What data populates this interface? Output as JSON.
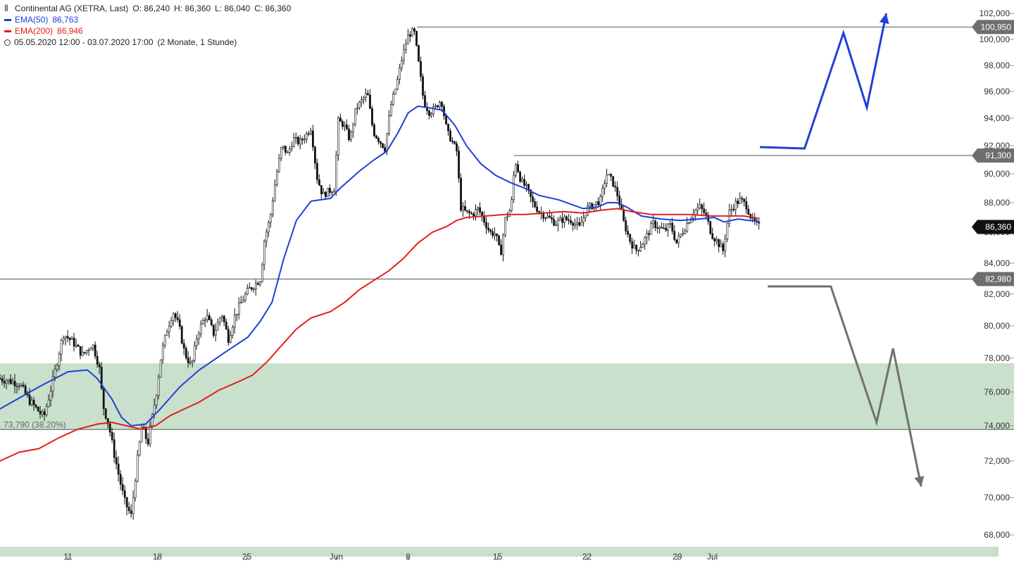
{
  "legend": {
    "title": "Continental AG (XETRA, Last)",
    "ohlc": {
      "o": "O: 86,240",
      "h": "H: 86,360",
      "l": "L: 86,040",
      "c": "C: 86,360"
    },
    "ema50": {
      "label": "EMA(50)",
      "value": "86,763",
      "color": "#1f3fd6"
    },
    "ema200": {
      "label": "EMA(200)",
      "value": "86,946",
      "color": "#e0201b"
    },
    "range": "05.05.2020 12:00 - 03.07.2020 17:00",
    "period": "(2 Monate, 1 Stunde)"
  },
  "chart_data": {
    "type": "candlestick",
    "ylim": [
      67000,
      103000
    ],
    "yticks": [
      "68,000",
      "70,000",
      "72,000",
      "74,000",
      "76,000",
      "78,000",
      "80,000",
      "82,000",
      "84,000",
      "86,000",
      "88,000",
      "90,000",
      "92,000",
      "94,000",
      "96,000",
      "98,000",
      "100,000",
      "102,000"
    ],
    "ytick_values": [
      68000,
      70000,
      72000,
      74000,
      76000,
      78000,
      80000,
      82000,
      84000,
      86000,
      88000,
      90000,
      92000,
      94000,
      96000,
      98000,
      100000,
      102000
    ],
    "xticks": [
      {
        "label": "11",
        "t": 0.07
      },
      {
        "label": "18",
        "t": 0.162
      },
      {
        "label": "25",
        "t": 0.254
      },
      {
        "label": "Jun",
        "t": 0.346
      },
      {
        "label": "8",
        "t": 0.42
      },
      {
        "label": "15",
        "t": 0.512
      },
      {
        "label": "22",
        "t": 0.604
      },
      {
        "label": "29",
        "t": 0.697
      },
      {
        "label": "Jul",
        "t": 0.733
      }
    ],
    "price_anchors": [
      [
        0.0,
        76800
      ],
      [
        0.02,
        76500
      ],
      [
        0.03,
        75500
      ],
      [
        0.045,
        74500
      ],
      [
        0.055,
        76800
      ],
      [
        0.065,
        79500
      ],
      [
        0.075,
        79000
      ],
      [
        0.085,
        78200
      ],
      [
        0.095,
        78900
      ],
      [
        0.102,
        77500
      ],
      [
        0.106,
        75200
      ],
      [
        0.112,
        74000
      ],
      [
        0.117,
        72500
      ],
      [
        0.123,
        71000
      ],
      [
        0.128,
        69800
      ],
      [
        0.135,
        69000
      ],
      [
        0.14,
        71500
      ],
      [
        0.146,
        74000
      ],
      [
        0.152,
        73000
      ],
      [
        0.156,
        74300
      ],
      [
        0.161,
        76000
      ],
      [
        0.166,
        78300
      ],
      [
        0.172,
        79800
      ],
      [
        0.178,
        80900
      ],
      [
        0.184,
        80000
      ],
      [
        0.19,
        78300
      ],
      [
        0.197,
        77500
      ],
      [
        0.203,
        79500
      ],
      [
        0.212,
        80700
      ],
      [
        0.22,
        79500
      ],
      [
        0.228,
        80800
      ],
      [
        0.235,
        79200
      ],
      [
        0.242,
        80700
      ],
      [
        0.25,
        81700
      ],
      [
        0.256,
        82300
      ],
      [
        0.262,
        82600
      ],
      [
        0.268,
        83000
      ],
      [
        0.272,
        85500
      ],
      [
        0.278,
        87000
      ],
      [
        0.284,
        89800
      ],
      [
        0.29,
        92000
      ],
      [
        0.296,
        91400
      ],
      [
        0.302,
        92500
      ],
      [
        0.308,
        92200
      ],
      [
        0.314,
        92700
      ],
      [
        0.32,
        93300
      ],
      [
        0.326,
        89800
      ],
      [
        0.332,
        88500
      ],
      [
        0.338,
        88800
      ],
      [
        0.344,
        89000
      ],
      [
        0.348,
        93800
      ],
      [
        0.354,
        93500
      ],
      [
        0.36,
        92400
      ],
      [
        0.366,
        94700
      ],
      [
        0.372,
        95300
      ],
      [
        0.378,
        95900
      ],
      [
        0.384,
        93000
      ],
      [
        0.39,
        92400
      ],
      [
        0.396,
        91800
      ],
      [
        0.402,
        94900
      ],
      [
        0.408,
        96500
      ],
      [
        0.414,
        98700
      ],
      [
        0.42,
        100300
      ],
      [
        0.426,
        100700
      ],
      [
        0.432,
        97500
      ],
      [
        0.436,
        95200
      ],
      [
        0.442,
        94400
      ],
      [
        0.448,
        94800
      ],
      [
        0.454,
        95400
      ],
      [
        0.46,
        93000
      ],
      [
        0.466,
        92200
      ],
      [
        0.47,
        91600
      ],
      [
        0.474,
        87700
      ],
      [
        0.48,
        87300
      ],
      [
        0.486,
        87200
      ],
      [
        0.492,
        87600
      ],
      [
        0.498,
        86800
      ],
      [
        0.504,
        86000
      ],
      [
        0.51,
        85900
      ],
      [
        0.515,
        84500
      ],
      [
        0.52,
        86900
      ],
      [
        0.526,
        87700
      ],
      [
        0.53,
        91000
      ],
      [
        0.536,
        89500
      ],
      [
        0.542,
        89000
      ],
      [
        0.548,
        88000
      ],
      [
        0.556,
        87300
      ],
      [
        0.564,
        87000
      ],
      [
        0.572,
        86600
      ],
      [
        0.58,
        86900
      ],
      [
        0.588,
        86800
      ],
      [
        0.596,
        86300
      ],
      [
        0.604,
        87600
      ],
      [
        0.612,
        87900
      ],
      [
        0.618,
        88200
      ],
      [
        0.624,
        90000
      ],
      [
        0.63,
        89500
      ],
      [
        0.636,
        88400
      ],
      [
        0.642,
        86600
      ],
      [
        0.648,
        85500
      ],
      [
        0.654,
        84800
      ],
      [
        0.66,
        85200
      ],
      [
        0.666,
        85800
      ],
      [
        0.672,
        86600
      ],
      [
        0.678,
        86300
      ],
      [
        0.684,
        86100
      ],
      [
        0.69,
        86500
      ],
      [
        0.696,
        85300
      ],
      [
        0.702,
        86000
      ],
      [
        0.708,
        86700
      ],
      [
        0.714,
        87400
      ],
      [
        0.72,
        87700
      ],
      [
        0.726,
        87200
      ],
      [
        0.732,
        85900
      ],
      [
        0.738,
        85400
      ],
      [
        0.744,
        84800
      ],
      [
        0.75,
        87300
      ],
      [
        0.756,
        87900
      ],
      [
        0.762,
        88200
      ],
      [
        0.768,
        87800
      ],
      [
        0.774,
        86800
      ],
      [
        0.78,
        86400
      ]
    ],
    "series": [
      {
        "name": "EMA(50)",
        "color": "#1f3fd6",
        "points": [
          [
            0.0,
            75000
          ],
          [
            0.04,
            76300
          ],
          [
            0.07,
            77200
          ],
          [
            0.09,
            77300
          ],
          [
            0.1,
            76800
          ],
          [
            0.115,
            75600
          ],
          [
            0.125,
            74500
          ],
          [
            0.135,
            74000
          ],
          [
            0.15,
            74100
          ],
          [
            0.165,
            75000
          ],
          [
            0.185,
            76300
          ],
          [
            0.205,
            77300
          ],
          [
            0.23,
            78300
          ],
          [
            0.255,
            79300
          ],
          [
            0.268,
            80300
          ],
          [
            0.28,
            81500
          ],
          [
            0.292,
            84300
          ],
          [
            0.305,
            86800
          ],
          [
            0.32,
            88100
          ],
          [
            0.34,
            88300
          ],
          [
            0.35,
            89000
          ],
          [
            0.37,
            90200
          ],
          [
            0.385,
            91000
          ],
          [
            0.398,
            91600
          ],
          [
            0.41,
            93000
          ],
          [
            0.42,
            94400
          ],
          [
            0.43,
            94900
          ],
          [
            0.44,
            94800
          ],
          [
            0.455,
            94600
          ],
          [
            0.468,
            93500
          ],
          [
            0.48,
            92000
          ],
          [
            0.495,
            90700
          ],
          [
            0.51,
            89900
          ],
          [
            0.525,
            89400
          ],
          [
            0.54,
            89000
          ],
          [
            0.555,
            88500
          ],
          [
            0.575,
            88200
          ],
          [
            0.6,
            87600
          ],
          [
            0.615,
            87700
          ],
          [
            0.625,
            88000
          ],
          [
            0.635,
            88000
          ],
          [
            0.645,
            87700
          ],
          [
            0.66,
            87100
          ],
          [
            0.68,
            86900
          ],
          [
            0.7,
            86800
          ],
          [
            0.72,
            86900
          ],
          [
            0.735,
            87000
          ],
          [
            0.745,
            86700
          ],
          [
            0.76,
            86900
          ],
          [
            0.77,
            86800
          ],
          [
            0.78,
            86763
          ]
        ]
      },
      {
        "name": "EMA(200)",
        "color": "#e0201b",
        "points": [
          [
            0.0,
            72000
          ],
          [
            0.02,
            72500
          ],
          [
            0.04,
            72700
          ],
          [
            0.06,
            73300
          ],
          [
            0.08,
            73800
          ],
          [
            0.1,
            74100
          ],
          [
            0.115,
            74200
          ],
          [
            0.13,
            74000
          ],
          [
            0.145,
            73800
          ],
          [
            0.16,
            74000
          ],
          [
            0.175,
            74600
          ],
          [
            0.19,
            75000
          ],
          [
            0.205,
            75400
          ],
          [
            0.225,
            76100
          ],
          [
            0.245,
            76600
          ],
          [
            0.26,
            77000
          ],
          [
            0.275,
            77800
          ],
          [
            0.29,
            78800
          ],
          [
            0.305,
            79800
          ],
          [
            0.32,
            80500
          ],
          [
            0.34,
            80900
          ],
          [
            0.355,
            81500
          ],
          [
            0.37,
            82300
          ],
          [
            0.385,
            82900
          ],
          [
            0.4,
            83500
          ],
          [
            0.415,
            84300
          ],
          [
            0.43,
            85300
          ],
          [
            0.445,
            86000
          ],
          [
            0.46,
            86400
          ],
          [
            0.47,
            86800
          ],
          [
            0.48,
            87000
          ],
          [
            0.5,
            87100
          ],
          [
            0.52,
            87200
          ],
          [
            0.54,
            87200
          ],
          [
            0.56,
            87300
          ],
          [
            0.58,
            87400
          ],
          [
            0.6,
            87300
          ],
          [
            0.62,
            87500
          ],
          [
            0.635,
            87600
          ],
          [
            0.65,
            87400
          ],
          [
            0.67,
            87200
          ],
          [
            0.69,
            87200
          ],
          [
            0.71,
            87200
          ],
          [
            0.73,
            87100
          ],
          [
            0.75,
            87100
          ],
          [
            0.765,
            87100
          ],
          [
            0.78,
            86946
          ]
        ]
      }
    ],
    "levels": [
      {
        "price": 100950,
        "label": "100,950",
        "start_t": 0.429
      },
      {
        "price": 91300,
        "label": "91,300",
        "start_t": 0.529
      },
      {
        "price": 82980,
        "label": "82,980",
        "start_t": 0.0
      },
      {
        "price": 73790,
        "label": "73,790 (38.20%)",
        "start_t": 0.0
      }
    ],
    "zone": {
      "from": 73790,
      "to": 77700,
      "color": "#c9e0cc"
    },
    "last_price": {
      "price": 86360,
      "label": "86,360"
    },
    "scenario_up": {
      "color": "#1f3fd6",
      "points": [
        [
          0.782,
          91900
        ],
        [
          0.828,
          91800
        ],
        [
          0.868,
          100500
        ],
        [
          0.892,
          94800
        ],
        [
          0.912,
          102000
        ]
      ]
    },
    "scenario_down": {
      "color": "#707070",
      "points": [
        [
          0.79,
          82500
        ],
        [
          0.855,
          82500
        ],
        [
          0.902,
          74200
        ],
        [
          0.919,
          78600
        ],
        [
          0.948,
          70600
        ]
      ]
    }
  }
}
